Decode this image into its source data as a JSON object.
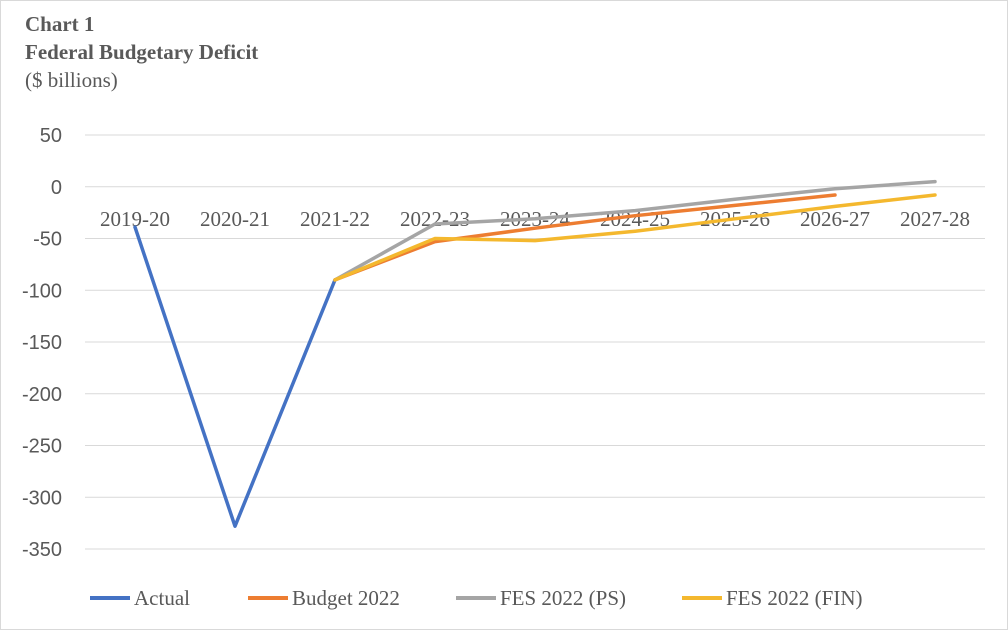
{
  "chart_data": {
    "type": "line",
    "title": "Chart 1",
    "subtitle": "Federal Budgetary Deficit",
    "ylabel": "($ billions)",
    "xlabel": "",
    "ylim": [
      -350,
      50
    ],
    "yticks": [
      50,
      0,
      -50,
      -100,
      -150,
      -200,
      -250,
      -300,
      -350
    ],
    "categories": [
      "2019-20",
      "2020-21",
      "2021-22",
      "2022-23",
      "2023-24",
      "2024-25",
      "2025-26",
      "2026-27",
      "2027-28"
    ],
    "grid": true,
    "legend_position": "bottom",
    "series": [
      {
        "name": "Actual",
        "color": "#4472C4",
        "values": [
          -39,
          -328,
          -90,
          null,
          null,
          null,
          null,
          null,
          null
        ]
      },
      {
        "name": "Budget 2022",
        "color": "#ED7D31",
        "values": [
          null,
          null,
          -90,
          -53,
          -40,
          -28,
          -18,
          -8,
          null
        ]
      },
      {
        "name": "FES 2022 (PS)",
        "color": "#A5A5A5",
        "values": [
          null,
          null,
          -90,
          -36,
          -31,
          -23,
          -12,
          -2,
          5
        ]
      },
      {
        "name": "FES 2022 (FIN)",
        "color": "#F4B82E",
        "values": [
          null,
          null,
          -90,
          -50,
          -52,
          -43,
          -31,
          -19,
          -8
        ]
      }
    ]
  }
}
